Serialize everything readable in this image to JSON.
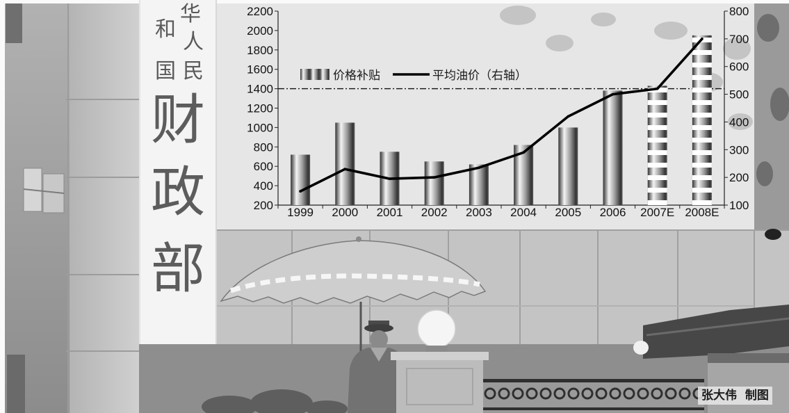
{
  "sign": {
    "right_column": [
      "华",
      "人",
      "民"
    ],
    "left_column": [
      "和",
      "国"
    ],
    "name": [
      "财",
      "政",
      "部"
    ]
  },
  "credit": "张大伟  制图",
  "chart_data": {
    "type": "bar",
    "categories": [
      "1999",
      "2000",
      "2001",
      "2002",
      "2003",
      "2004",
      "2005",
      "2006",
      "2007E",
      "2008E"
    ],
    "series": [
      {
        "name": "价格补贴",
        "type": "bar",
        "axis": "left",
        "values": [
          720,
          1050,
          750,
          650,
          620,
          820,
          1000,
          1380,
          1430,
          1950
        ],
        "pattern": [
          "solid",
          "solid",
          "solid",
          "solid",
          "solid",
          "solid",
          "solid",
          "solid",
          "striped",
          "striped"
        ]
      },
      {
        "name": "平均油价（右轴）",
        "type": "line",
        "axis": "right",
        "values": [
          150,
          230,
          195,
          200,
          235,
          290,
          420,
          500,
          520,
          700
        ]
      }
    ],
    "y_left": {
      "range": [
        200,
        2200
      ],
      "ticks": [
        200,
        400,
        600,
        800,
        1000,
        1200,
        1400,
        1600,
        1800,
        2000,
        2200
      ]
    },
    "y_right": {
      "range": [
        100,
        800
      ],
      "ticks": [
        100,
        200,
        300,
        400,
        500,
        600,
        700,
        800
      ]
    },
    "reference_line": {
      "axis": "left",
      "value": 1400,
      "style": "dash-dot"
    },
    "legend": "top-left",
    "grid": false,
    "colors": {
      "bar_dark": "#333333",
      "bar_light": "#f4f4f4",
      "line": "#000000",
      "stripe": "#ffffff",
      "reference_line": "#111111"
    }
  }
}
